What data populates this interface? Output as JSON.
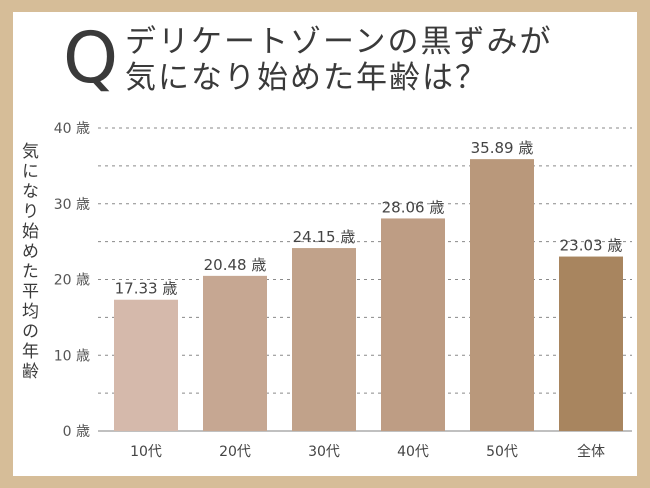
{
  "header": {
    "q_mark": "Q",
    "title_line1": "デリケートゾーンの黒ずみが",
    "title_line2": "気になり始めた年齢は？"
  },
  "colors": {
    "frame": "#d6bd98",
    "highlight_text": "#e0405a",
    "bars": [
      "#d5b9ab",
      "#c6a792",
      "#c1a28a",
      "#be9d84",
      "#b9987b",
      "#a8855f"
    ]
  },
  "chart_data": {
    "type": "bar",
    "title": "デリケートゾーンの黒ずみが気になり始めた年齢は？",
    "ylabel": "気になり始めた平均の年齢",
    "xlabel": "",
    "categories": [
      "10代",
      "20代",
      "30代",
      "40代",
      "50代",
      "全体"
    ],
    "values": [
      17.33,
      20.48,
      24.15,
      28.06,
      35.89,
      23.03
    ],
    "value_labels": [
      "17.33 歳",
      "20.48 歳",
      "24.15 歳",
      "28.06 歳",
      "35.89 歳",
      "23.03 歳"
    ],
    "highlight_index": 5,
    "ylim": [
      0,
      40
    ],
    "yticks": [
      0,
      10,
      20,
      30,
      40
    ],
    "ytick_labels": [
      "0 歳",
      "10 歳",
      "20 歳",
      "30 歳",
      "40 歳"
    ],
    "grid": true
  }
}
